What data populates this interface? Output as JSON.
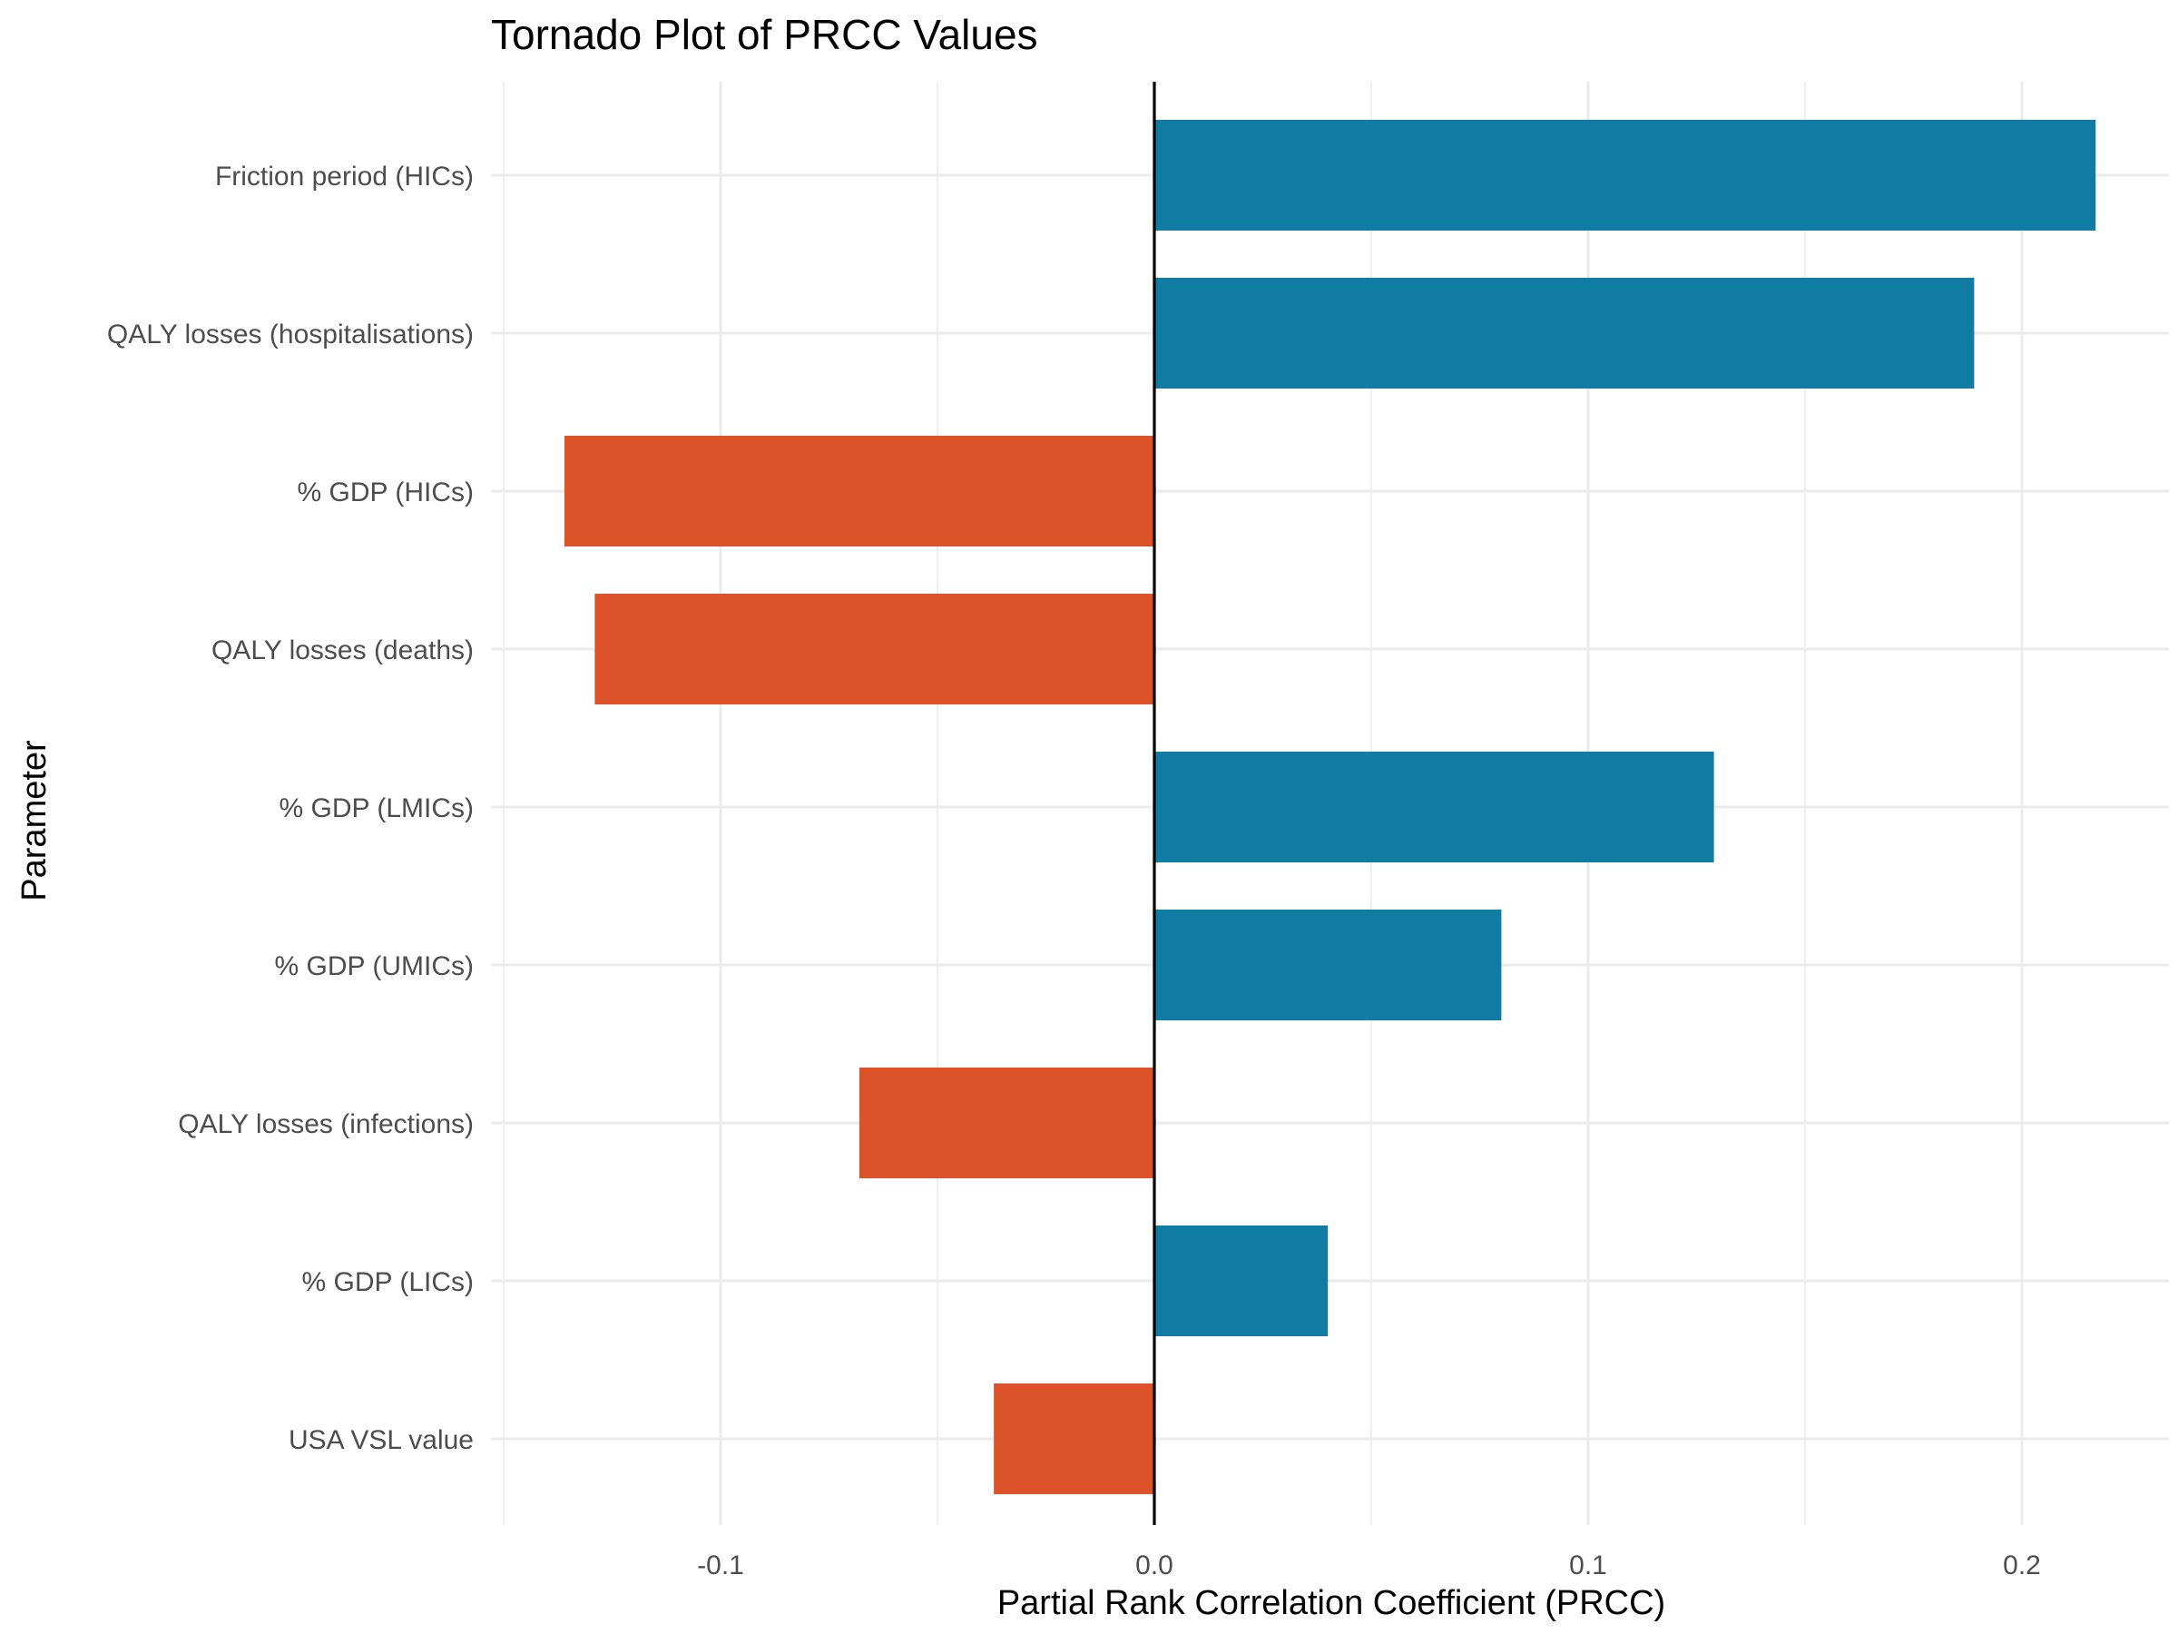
{
  "chart_data": {
    "type": "bar",
    "orientation": "horizontal",
    "title": "Tornado Plot of PRCC Values",
    "xlabel": "Partial Rank Correlation Coefficient (PRCC)",
    "ylabel": "Parameter",
    "xlim": [
      -0.15,
      0.235
    ],
    "xticks": [
      -0.1,
      0.0,
      0.1,
      0.2
    ],
    "xtick_labels": [
      "-0.1",
      "0.0",
      "0.1",
      "0.2"
    ],
    "grid": true,
    "legend": "none",
    "categories": [
      "Friction period (HICs)",
      "QALY losses (hospitalisations)",
      "% GDP (HICs)",
      "QALY losses (deaths)",
      "% GDP (LMICs)",
      "% GDP (UMICs)",
      "QALY losses (infections)",
      "% GDP (LICs)",
      "USA VSL value"
    ],
    "values": [
      0.217,
      0.189,
      -0.136,
      -0.129,
      0.129,
      0.08,
      -0.068,
      0.04,
      -0.037
    ],
    "colors": {
      "positive": "#117CA3",
      "negative": "#DC5229",
      "zero_line": "#000000",
      "grid": "#EBEBEB"
    }
  }
}
